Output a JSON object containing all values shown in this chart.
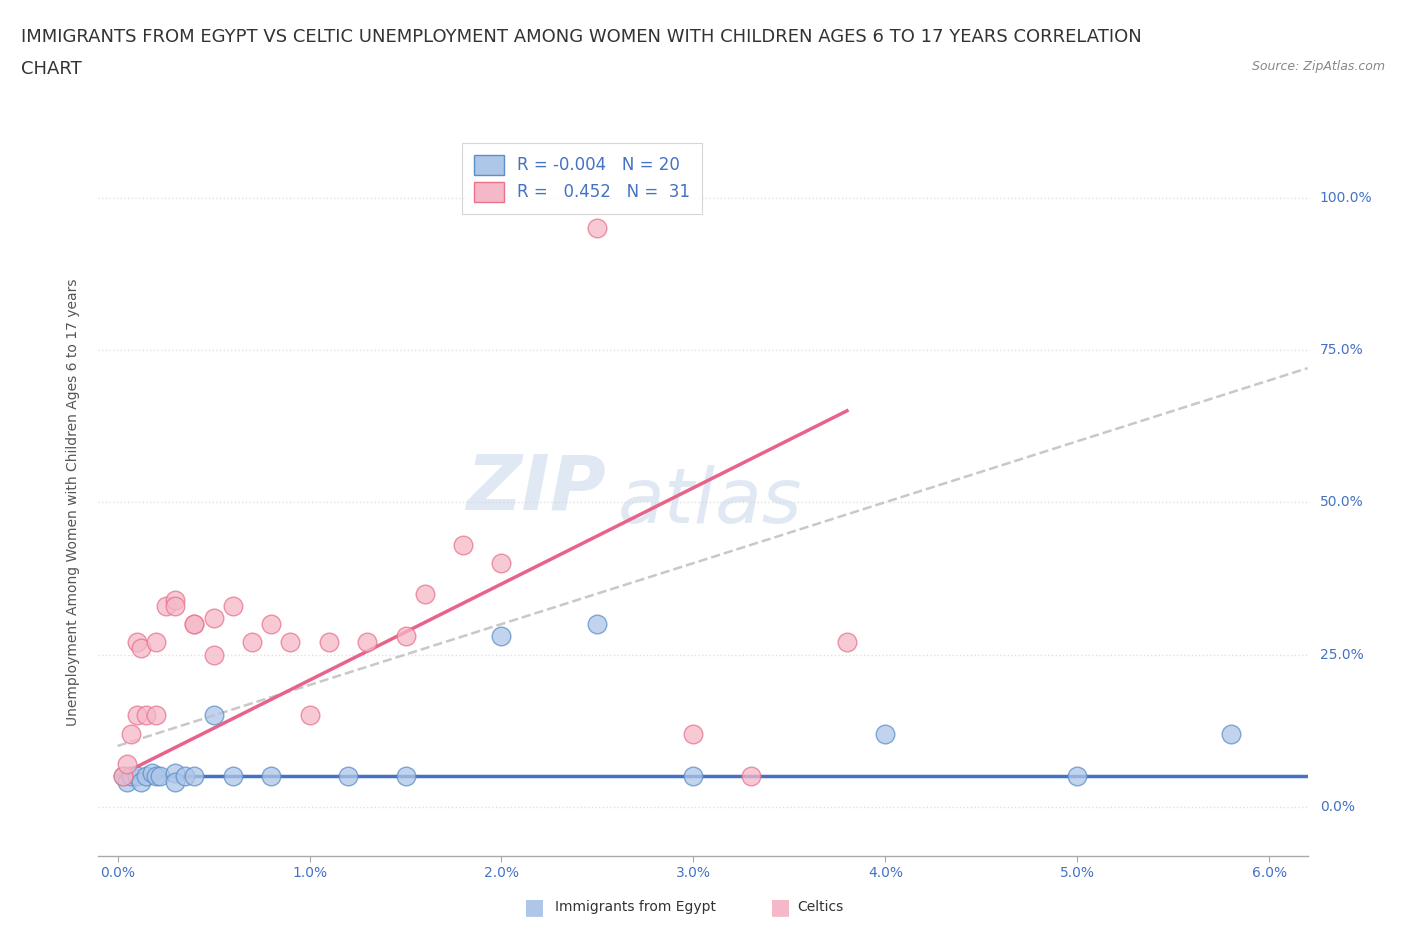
{
  "title_line1": "IMMIGRANTS FROM EGYPT VS CELTIC UNEMPLOYMENT AMONG WOMEN WITH CHILDREN AGES 6 TO 17 YEARS CORRELATION",
  "title_line2": "CHART",
  "source": "Source: ZipAtlas.com",
  "ylabel": "Unemployment Among Women with Children Ages 6 to 17 years",
  "xlim": [
    -0.001,
    0.062
  ],
  "ylim": [
    -0.08,
    1.08
  ],
  "xtick_labels": [
    "0.0%",
    "1.0%",
    "2.0%",
    "3.0%",
    "4.0%",
    "5.0%",
    "6.0%"
  ],
  "xtick_values": [
    0.0,
    0.01,
    0.02,
    0.03,
    0.04,
    0.05,
    0.06
  ],
  "ytick_labels_right": [
    "0.0%",
    "25.0%",
    "50.0%",
    "75.0%",
    "100.0%"
  ],
  "ytick_values": [
    0.0,
    0.25,
    0.5,
    0.75,
    1.0
  ],
  "color_egypt": "#aec6e8",
  "color_celtics": "#f5b8c8",
  "color_egypt_edge": "#5b8fc9",
  "color_celtics_edge": "#e8738a",
  "color_egypt_line": "#4472c4",
  "color_celtics_line": "#e8638a",
  "color_trend_dashed": "#bbbbbb",
  "background_color": "#ffffff",
  "watermark_zip": "ZIP",
  "watermark_atlas": "atlas",
  "grid_color": "#e0e0e0",
  "grid_style": "dotted",
  "title_fontsize": 13,
  "axis_label_fontsize": 10,
  "tick_fontsize": 10,
  "legend_fontsize": 12,
  "egypt_x": [
    0.0003,
    0.0005,
    0.0007,
    0.001,
    0.0012,
    0.0015,
    0.0018,
    0.002,
    0.0022,
    0.003,
    0.003,
    0.0035,
    0.004,
    0.005,
    0.006,
    0.008,
    0.012,
    0.015,
    0.02,
    0.025,
    0.03,
    0.04,
    0.05,
    0.058
  ],
  "egypt_y": [
    0.05,
    0.04,
    0.05,
    0.05,
    0.04,
    0.05,
    0.055,
    0.05,
    0.05,
    0.055,
    0.04,
    0.05,
    0.05,
    0.15,
    0.05,
    0.05,
    0.05,
    0.05,
    0.28,
    0.3,
    0.05,
    0.12,
    0.05,
    0.12
  ],
  "celtics_x": [
    0.0003,
    0.0005,
    0.0007,
    0.001,
    0.001,
    0.0012,
    0.0015,
    0.002,
    0.002,
    0.0025,
    0.003,
    0.003,
    0.004,
    0.004,
    0.005,
    0.005,
    0.006,
    0.007,
    0.008,
    0.009,
    0.01,
    0.011,
    0.013,
    0.015,
    0.016,
    0.018,
    0.02,
    0.025,
    0.03,
    0.033,
    0.038
  ],
  "celtics_y": [
    0.05,
    0.07,
    0.12,
    0.15,
    0.27,
    0.26,
    0.15,
    0.15,
    0.27,
    0.33,
    0.34,
    0.33,
    0.3,
    0.3,
    0.31,
    0.25,
    0.33,
    0.27,
    0.3,
    0.27,
    0.15,
    0.27,
    0.27,
    0.28,
    0.35,
    0.43,
    0.4,
    0.95,
    0.12,
    0.05,
    0.27
  ],
  "egypt_trend_x": [
    0.0,
    0.062
  ],
  "egypt_trend_y": [
    0.05,
    0.05
  ],
  "celtics_trend_x": [
    0.0,
    0.038
  ],
  "celtics_trend_y": [
    0.05,
    0.65
  ],
  "dashed_trend_x": [
    0.0,
    0.062
  ],
  "dashed_trend_y": [
    0.1,
    0.72
  ]
}
